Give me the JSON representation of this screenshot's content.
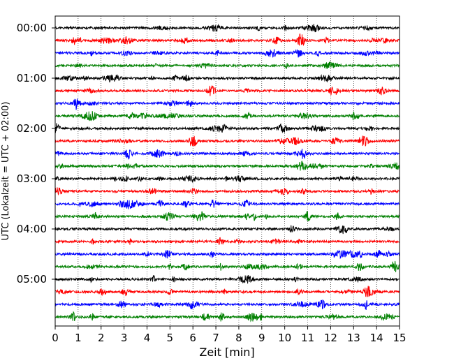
{
  "chart_data": {
    "type": "line",
    "subtype": "helicorder (seismogram trace plot)",
    "xlabel": "Zeit  [min]",
    "ylabel": "UTC (Lokalzeit = UTC + 02:00)",
    "xlim": [
      0,
      15
    ],
    "x_ticks": [
      "0",
      "1",
      "2",
      "3",
      "4",
      "5",
      "6",
      "7",
      "8",
      "9",
      "10",
      "11",
      "12",
      "13",
      "14",
      "15"
    ],
    "y_tick_labels": [
      "00:00",
      "01:00",
      "02:00",
      "03:00",
      "04:00",
      "05:00"
    ],
    "trace_minutes": 15,
    "grid": "vertical dotted lines at each minute",
    "trace_colors": [
      "#000000",
      "#ff0000",
      "#0000ff",
      "#008000"
    ],
    "traces": [
      {
        "start": "00:00",
        "color": "#000000"
      },
      {
        "start": "00:15",
        "color": "#ff0000"
      },
      {
        "start": "00:30",
        "color": "#0000ff"
      },
      {
        "start": "00:45",
        "color": "#008000"
      },
      {
        "start": "01:00",
        "color": "#000000"
      },
      {
        "start": "01:15",
        "color": "#ff0000"
      },
      {
        "start": "01:30",
        "color": "#0000ff"
      },
      {
        "start": "01:45",
        "color": "#008000"
      },
      {
        "start": "02:00",
        "color": "#000000"
      },
      {
        "start": "02:15",
        "color": "#ff0000"
      },
      {
        "start": "02:30",
        "color": "#0000ff"
      },
      {
        "start": "02:45",
        "color": "#008000"
      },
      {
        "start": "03:00",
        "color": "#000000"
      },
      {
        "start": "03:15",
        "color": "#ff0000"
      },
      {
        "start": "03:30",
        "color": "#0000ff"
      },
      {
        "start": "03:45",
        "color": "#008000"
      },
      {
        "start": "04:00",
        "color": "#000000"
      },
      {
        "start": "04:15",
        "color": "#ff0000"
      },
      {
        "start": "04:30",
        "color": "#0000ff"
      },
      {
        "start": "04:45",
        "color": "#008000"
      },
      {
        "start": "05:00",
        "color": "#000000"
      },
      {
        "start": "05:15",
        "color": "#ff0000"
      },
      {
        "start": "05:30",
        "color": "#0000ff"
      },
      {
        "start": "05:45",
        "color": "#008000"
      }
    ],
    "notable_events": [
      {
        "trace_start": "00:15",
        "minute": 10.7
      },
      {
        "trace_start": "01:15",
        "minute": 6.8
      },
      {
        "trace_start": "02:15",
        "minute": 6.0
      },
      {
        "trace_start": "04:45",
        "minute": 14.8
      }
    ]
  }
}
